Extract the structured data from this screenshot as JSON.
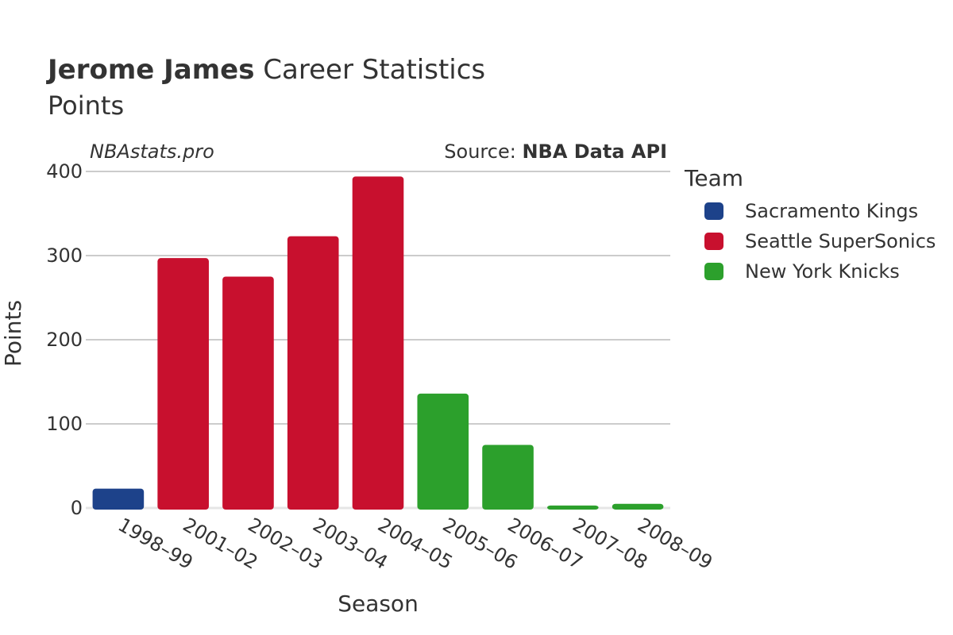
{
  "header": {
    "title_bold": "Jerome James",
    "title_rest": "Career Statistics",
    "subtitle": "Points"
  },
  "watermark": "NBAstats.pro",
  "source": {
    "prefix": "Source: ",
    "name": "NBA Data API"
  },
  "legend": {
    "title": "Team",
    "items": [
      {
        "label": "Sacramento Kings",
        "color": "#1d428a"
      },
      {
        "label": "Seattle SuperSonics",
        "color": "#c8102e"
      },
      {
        "label": "New York Knicks",
        "color": "#2ca02c"
      }
    ]
  },
  "chart_data": {
    "type": "bar",
    "xlabel": "Season",
    "ylabel": "Points",
    "ylim": [
      0,
      400
    ],
    "yticks": [
      0,
      100,
      200,
      300,
      400
    ],
    "grid": true,
    "legend_position": "right",
    "categories": [
      "1998–99",
      "2001–02",
      "2002–03",
      "2003–04",
      "2004–05",
      "2005–06",
      "2006–07",
      "2007–08",
      "2008–09"
    ],
    "values": [
      23,
      297,
      275,
      323,
      394,
      136,
      75,
      3,
      5
    ],
    "teams": [
      "Sacramento Kings",
      "Seattle SuperSonics",
      "Seattle SuperSonics",
      "Seattle SuperSonics",
      "Seattle SuperSonics",
      "New York Knicks",
      "New York Knicks",
      "New York Knicks",
      "New York Knicks"
    ]
  }
}
